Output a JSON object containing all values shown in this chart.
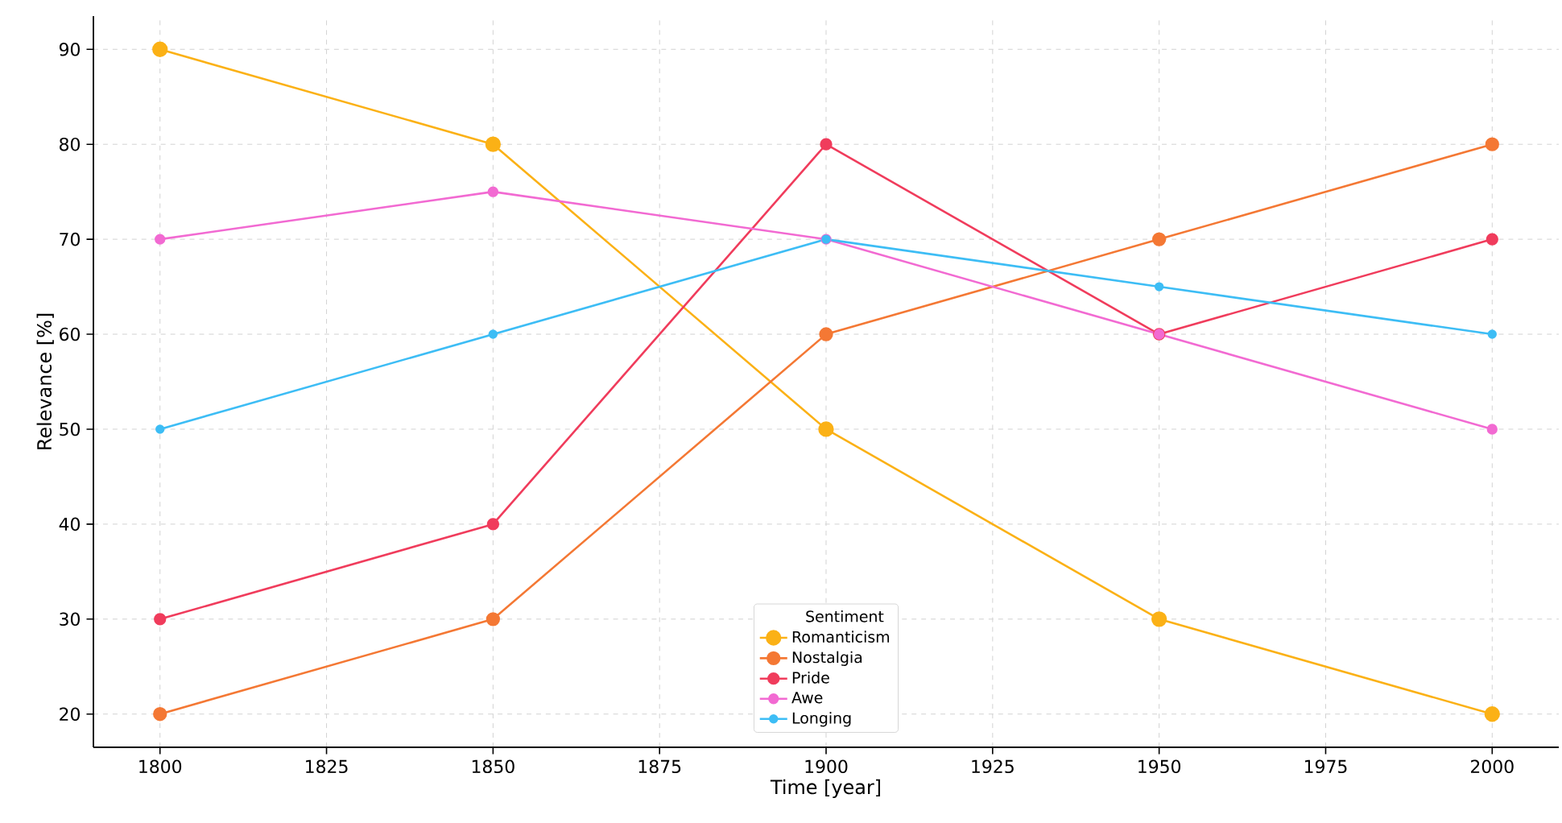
{
  "chart_data": {
    "type": "line",
    "xlabel": "Time [year]",
    "ylabel": "Relevance [%]",
    "legend_title": "Sentiment",
    "legend": "bottom",
    "grid": true,
    "marker": "circle",
    "line_style": "solid",
    "x": [
      1800,
      1850,
      1900,
      1950,
      2000
    ],
    "xlim": [
      1790,
      2010
    ],
    "xticks": [
      1800,
      1825,
      1850,
      1875,
      1900,
      1925,
      1950,
      1975,
      2000
    ],
    "ylim": [
      16.5,
      93.5
    ],
    "yticks": [
      20,
      30,
      40,
      50,
      60,
      70,
      80,
      90
    ],
    "series": [
      {
        "name": "Romanticism",
        "color": "#fbb116",
        "values": [
          90,
          80,
          50,
          30,
          20
        ]
      },
      {
        "name": "Nostalgia",
        "color": "#f47834",
        "values": [
          20,
          30,
          60,
          70,
          80
        ]
      },
      {
        "name": "Pride",
        "color": "#f03c5c",
        "values": [
          30,
          40,
          80,
          60,
          70
        ]
      },
      {
        "name": "Awe",
        "color": "#f26ad2",
        "values": [
          70,
          75,
          70,
          60,
          50
        ]
      },
      {
        "name": "Longing",
        "color": "#3dbdf5",
        "values": [
          50,
          60,
          70,
          65,
          60
        ]
      }
    ]
  }
}
